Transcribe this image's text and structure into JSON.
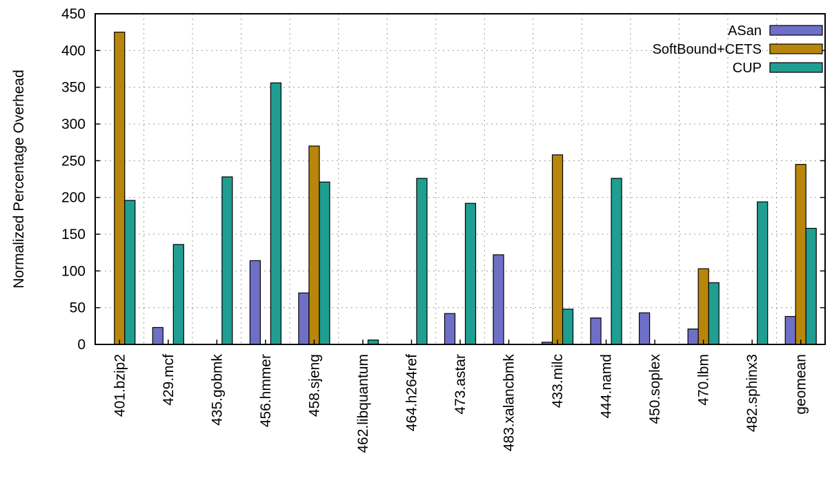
{
  "chart_data": {
    "type": "bar",
    "title": "",
    "xlabel": "",
    "ylabel": "Normalized Percentage Overhead",
    "ylim": [
      0,
      450
    ],
    "yticks": [
      0,
      50,
      100,
      150,
      200,
      250,
      300,
      350,
      400,
      450
    ],
    "grid": true,
    "legend_position": "top-right",
    "categories": [
      "401.bzip2",
      "429.mcf",
      "435.gobmk",
      "456.hmmer",
      "458.sjeng",
      "462.libquantum",
      "464.h264ref",
      "473.astar",
      "483.xalancbmk",
      "433.milc",
      "444.namd",
      "450.soplex",
      "470.lbm",
      "482.sphinx3",
      "geomean"
    ],
    "series": [
      {
        "name": "ASan",
        "color": "#6f6fc8",
        "values": [
          0,
          23,
          0,
          114,
          70,
          0,
          0,
          42,
          122,
          3,
          36,
          43,
          21,
          0,
          38
        ]
      },
      {
        "name": "SoftBound+CETS",
        "color": "#b8860b",
        "values": [
          425,
          0,
          0,
          0,
          270,
          0,
          0,
          0,
          0,
          258,
          0,
          0,
          103,
          0,
          245
        ]
      },
      {
        "name": "CUP",
        "color": "#1f9e91",
        "values": [
          196,
          136,
          228,
          356,
          221,
          6,
          226,
          192,
          0,
          48,
          226,
          0,
          84,
          194,
          158
        ]
      }
    ]
  }
}
